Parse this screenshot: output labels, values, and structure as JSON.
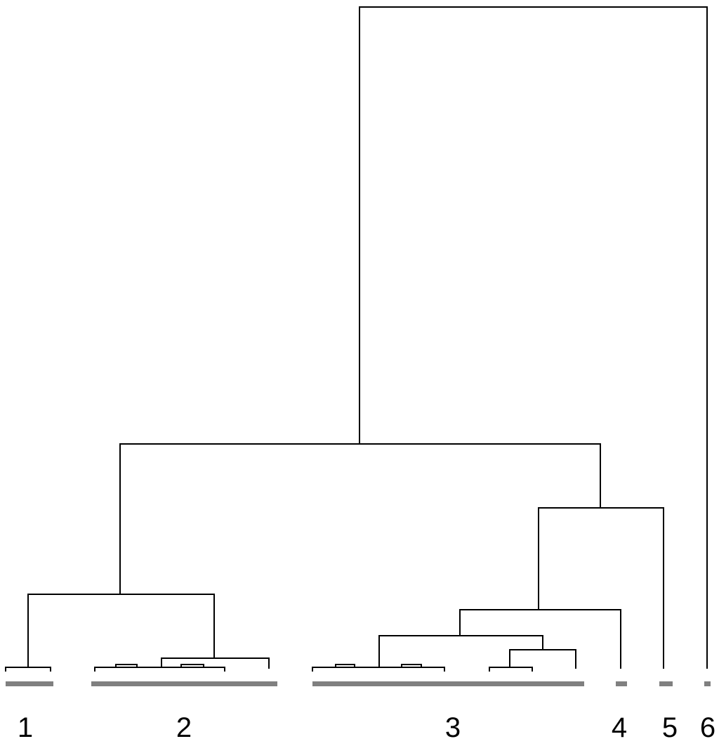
{
  "figure": {
    "type": "dendrogram",
    "link_color": "#000000",
    "bar_color": "#808080",
    "clusters": [
      {
        "label": "1"
      },
      {
        "label": "2"
      },
      {
        "label": "3"
      },
      {
        "label": "4"
      },
      {
        "label": "5"
      },
      {
        "label": "6"
      }
    ]
  }
}
